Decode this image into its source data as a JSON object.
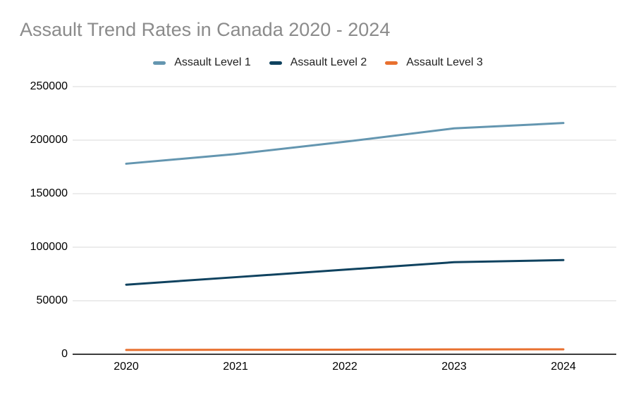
{
  "title": "Assault Trend Rates in Canada 2020 - 2024",
  "legend": {
    "items": [
      {
        "label": "Assault Level 1",
        "color": "#6496b0"
      },
      {
        "label": "Assault Level 2",
        "color": "#0f425f"
      },
      {
        "label": "Assault Level 3",
        "color": "#e8702f"
      }
    ]
  },
  "chart_data": {
    "type": "line",
    "title": "Assault Trend Rates in Canada 2020 - 2024",
    "categories": [
      "2020",
      "2021",
      "2022",
      "2023",
      "2024"
    ],
    "series": [
      {
        "name": "Assault Level 1",
        "color": "#6496b0",
        "values": [
          178000,
          187000,
          198500,
          211000,
          216000
        ]
      },
      {
        "name": "Assault Level 2",
        "color": "#0f425f",
        "values": [
          65000,
          72000,
          79000,
          86000,
          88000
        ]
      },
      {
        "name": "Assault Level 3",
        "color": "#e8702f",
        "values": [
          4000,
          4200,
          4300,
          4500,
          4600
        ]
      }
    ],
    "xlabel": "",
    "ylabel": "",
    "ylim": [
      0,
      250000
    ],
    "y_ticks": [
      0,
      50000,
      100000,
      150000,
      200000,
      250000
    ],
    "y_tick_labels": [
      "0",
      "50000",
      "100000",
      "150000",
      "200000",
      "250000"
    ],
    "grid": "horizontal-only",
    "legend_position": "top-center",
    "colors": {
      "background": "#ffffff",
      "title_text": "#8b8b8b",
      "gridline": "#d8d8d8",
      "axis_line": "#3c3c3c",
      "tick_text": "#000000"
    }
  }
}
